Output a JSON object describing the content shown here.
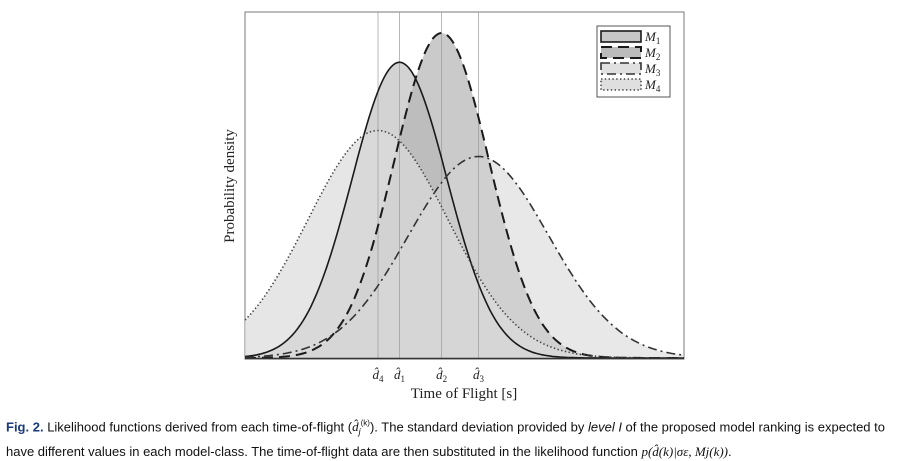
{
  "chart_data": {
    "type": "area",
    "title": "",
    "xlabel": "Time of Flight [s]",
    "ylabel": "Probability density",
    "xlim": [
      0,
      10
    ],
    "ylim": [
      0,
      1.0
    ],
    "grid": false,
    "legend_position": "top-right",
    "ticks": [
      {
        "x": 3.03,
        "label": "d̂4",
        "base": "d̂",
        "sub": "4"
      },
      {
        "x": 3.52,
        "label": "d̂1",
        "base": "d̂",
        "sub": "1"
      },
      {
        "x": 4.48,
        "label": "d̂2",
        "base": "d̂",
        "sub": "2"
      },
      {
        "x": 5.32,
        "label": "d̂3",
        "base": "d̂",
        "sub": "3"
      }
    ],
    "series": [
      {
        "name": "M1",
        "legend_base": "M",
        "legend_sub": "1",
        "style": "solid",
        "mean": 3.52,
        "sd": 1.08,
        "peak": 0.91,
        "fill": "#c4c4c4",
        "fill_opacity": 0.75
      },
      {
        "name": "M2",
        "legend_base": "M",
        "legend_sub": "2",
        "style": "dashed",
        "mean": 4.48,
        "sd": 1.08,
        "peak": 1.0,
        "fill": "#b4b4b4",
        "fill_opacity": 0.7
      },
      {
        "name": "M3",
        "legend_base": "M",
        "legend_sub": "3",
        "style": "dashdot",
        "mean": 5.32,
        "sd": 1.6,
        "peak": 0.62,
        "fill": "#d6d6d6",
        "fill_opacity": 0.55
      },
      {
        "name": "M4",
        "legend_base": "M",
        "legend_sub": "4",
        "style": "dotted",
        "mean": 3.03,
        "sd": 1.6,
        "peak": 0.7,
        "fill": "#dcdcdc",
        "fill_opacity": 0.7
      }
    ]
  },
  "caption": {
    "label": "Fig. 2.",
    "text_1": "Likelihood functions derived from each time-of-flight (",
    "dj_symbol": "d̂",
    "dj_sub": "j",
    "dj_sup": "(k)",
    "text_2": "). The standard deviation provided by ",
    "level_text": "level I",
    "text_3": " of the proposed model ranking is expected to have different values in each model-class. The time-of-flight data are then substituted in the likelihood function ",
    "formula": "p(d̂(k)|σε, Mj(k))",
    "text_end": "."
  }
}
